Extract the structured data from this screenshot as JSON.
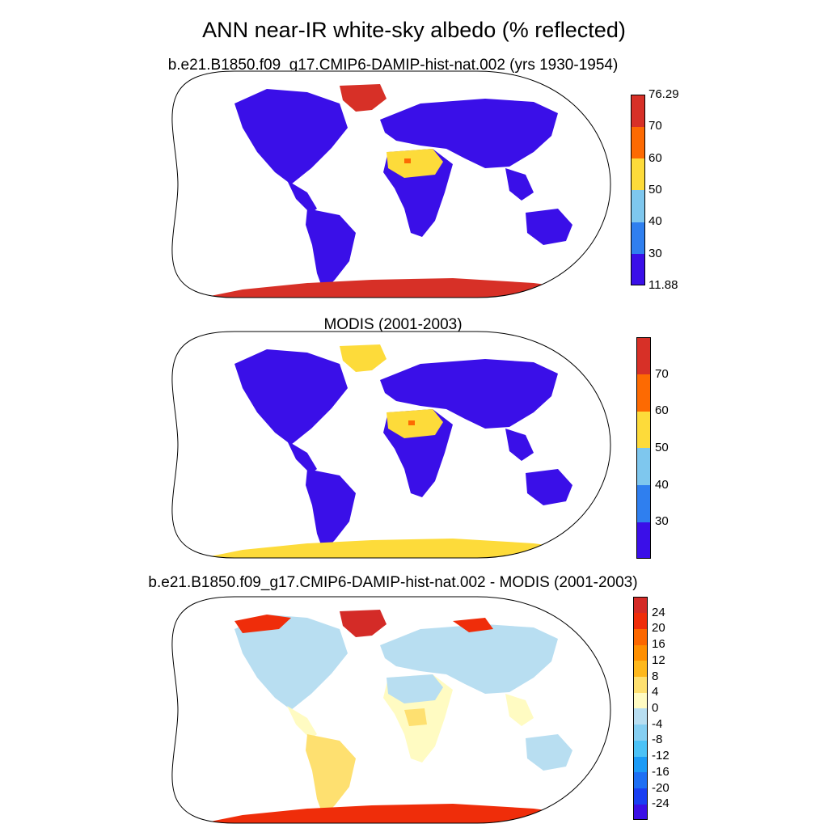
{
  "title": "ANN near-IR white-sky albedo (% reflected)",
  "panels": [
    {
      "id": "model",
      "subtitle": "b.e21.B1850.f09_g17.CMIP6-DAMIP-hist-nat.002 (yrs 1930-1954)",
      "colorbar": {
        "colors": [
          "#3a0fe8",
          "#2f7fef",
          "#7ec7ee",
          "#fddb3a",
          "#fd6a02",
          "#d73027"
        ],
        "tick_labels": [
          "11.88",
          "30",
          "40",
          "50",
          "60",
          "70",
          "76.29"
        ]
      }
    },
    {
      "id": "obs",
      "subtitle": "MODIS (2001-2003)",
      "colorbar": {
        "colors": [
          "#3a0fe8",
          "#2f7fef",
          "#7ec7ee",
          "#fddb3a",
          "#fd6a02",
          "#d73027"
        ],
        "tick_labels": [
          "30",
          "40",
          "50",
          "60",
          "70"
        ]
      }
    },
    {
      "id": "diff",
      "subtitle": "b.e21.B1850.f09_g17.CMIP6-DAMIP-hist-nat.002 - MODIS (2001-2003)",
      "colorbar": {
        "colors": [
          "#3b10e5",
          "#1a3ff2",
          "#1e6ff4",
          "#1c9bf6",
          "#4cc2f6",
          "#86cff2",
          "#b8def1",
          "#fffbc2",
          "#fee070",
          "#feb81d",
          "#fe8f01",
          "#fc6700",
          "#ef2d0a",
          "#d42b27"
        ],
        "tick_labels": [
          "-24",
          "-20",
          "-16",
          "-12",
          "-8",
          "-4",
          "0",
          "4",
          "8",
          "12",
          "16",
          "20",
          "24"
        ]
      }
    }
  ]
}
